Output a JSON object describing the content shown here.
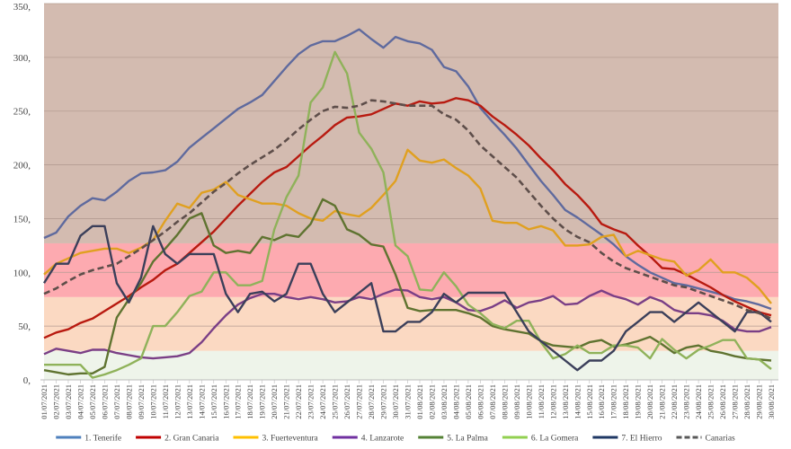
{
  "chart_data": {
    "type": "line",
    "title": "",
    "xlabel": "",
    "ylabel": "",
    "ylim": [
      0,
      350
    ],
    "yticks": [
      "0,",
      "50,",
      "100,",
      "150,",
      "200,",
      "250,",
      "300,",
      "350,"
    ],
    "grid": true,
    "legend_position": "bottom",
    "background_bands": [
      {
        "from": 0,
        "to": 27,
        "color": "#eef4ea"
      },
      {
        "from": 27,
        "to": 77,
        "color": "#fbd9c2"
      },
      {
        "from": 77,
        "to": 127,
        "color": "#fdaab0"
      },
      {
        "from": 127,
        "to": 350,
        "color": "#d3bbb0"
      }
    ],
    "x": [
      "01/07/2021",
      "02/07/2021",
      "03/07/2021",
      "04/07/2021",
      "05/07/2021",
      "06/07/2021",
      "07/07/2021",
      "08/07/2021",
      "09/07/2021",
      "10/07/2021",
      "11/07/2021",
      "12/07/2021",
      "13/07/2021",
      "14/07/2021",
      "15/07/2021",
      "16/07/2021",
      "17/07/2021",
      "18/07/2021",
      "19/07/2021",
      "20/07/2021",
      "21/07/2021",
      "22/07/2021",
      "23/07/2021",
      "24/07/2021",
      "25/07/2021",
      "26/07/2021",
      "27/07/2021",
      "28/07/2021",
      "29/07/2021",
      "30/07/2021",
      "31/07/2021",
      "01/08/2021",
      "02/08/2021",
      "03/08/2021",
      "04/08/2021",
      "05/08/2021",
      "06/08/2021",
      "07/08/2021",
      "08/08/2021",
      "09/08/2021",
      "10/08/2021",
      "11/08/2021",
      "12/08/2021",
      "13/08/2021",
      "14/08/2021",
      "15/08/2021",
      "16/08/2021",
      "17/08/2021",
      "18/08/2021",
      "19/08/2021",
      "20/08/2021",
      "21/08/2021",
      "22/08/2021",
      "23/08/2021",
      "24/08/2021",
      "25/08/2021",
      "26/08/2021",
      "27/08/2021",
      "28/08/2021",
      "29/08/2021",
      "30/08/2021"
    ],
    "series": [
      {
        "name": "1. Tenerife",
        "color": "#5f6a9e",
        "legend_color": "#4f81bd",
        "dashed": false,
        "values": [
          132,
          137,
          152,
          162,
          169,
          167,
          175,
          185,
          192,
          193,
          195,
          203,
          216,
          225,
          234,
          243,
          252,
          258,
          265,
          278,
          291,
          303,
          311,
          315,
          315,
          320,
          326,
          317,
          309,
          319,
          315,
          313,
          307,
          291,
          287,
          273,
          253,
          240,
          228,
          215,
          200,
          185,
          172,
          158,
          151,
          143,
          135,
          126,
          115,
          107,
          100,
          95,
          90,
          88,
          85,
          82,
          79,
          75,
          73,
          70,
          66
        ]
      },
      {
        "name": "2. Gran Canaria",
        "color": "#b81a10",
        "legend_color": "#c00000",
        "dashed": false,
        "values": [
          39,
          44,
          47,
          53,
          57,
          64,
          71,
          78,
          86,
          93,
          102,
          108,
          118,
          128,
          138,
          150,
          162,
          173,
          184,
          193,
          198,
          208,
          218,
          227,
          237,
          244,
          245,
          247,
          252,
          257,
          255,
          259,
          257,
          258,
          262,
          260,
          255,
          245,
          237,
          228,
          218,
          206,
          195,
          182,
          172,
          160,
          145,
          140,
          136,
          125,
          115,
          104,
          103,
          98,
          92,
          86,
          79,
          73,
          68,
          63,
          60
        ]
      },
      {
        "name": "3. Fuerteventura",
        "color": "#e0a020",
        "legend_color": "#ffc000",
        "dashed": false,
        "values": [
          98,
          108,
          113,
          118,
          120,
          122,
          122,
          118,
          123,
          130,
          148,
          164,
          160,
          174,
          177,
          184,
          172,
          168,
          164,
          164,
          162,
          155,
          150,
          148,
          157,
          154,
          152,
          160,
          172,
          185,
          214,
          204,
          202,
          205,
          197,
          190,
          178,
          148,
          146,
          146,
          140,
          143,
          139,
          125,
          125,
          126,
          133,
          135,
          115,
          120,
          116,
          112,
          110,
          97,
          102,
          112,
          100,
          100,
          95,
          85,
          71
        ]
      },
      {
        "name": "4. Lanzarote",
        "color": "#7a3f86",
        "legend_color": "#7030a0",
        "dashed": false,
        "values": [
          24,
          29,
          27,
          25,
          28,
          28,
          25,
          23,
          21,
          20,
          21,
          22,
          25,
          35,
          48,
          60,
          70,
          76,
          80,
          80,
          77,
          75,
          77,
          75,
          72,
          73,
          77,
          75,
          80,
          84,
          83,
          77,
          75,
          77,
          72,
          65,
          64,
          68,
          74,
          67,
          72,
          74,
          78,
          70,
          71,
          78,
          83,
          78,
          75,
          70,
          77,
          73,
          65,
          62,
          62,
          60,
          55,
          47,
          45,
          45,
          49
        ]
      },
      {
        "name": "5. La Palma",
        "color": "#5f7330",
        "legend_color": "#548235",
        "dashed": false,
        "values": [
          9,
          7,
          5,
          6,
          6,
          12,
          58,
          75,
          90,
          110,
          122,
          135,
          150,
          155,
          125,
          118,
          120,
          118,
          133,
          130,
          135,
          133,
          145,
          168,
          162,
          140,
          135,
          126,
          124,
          98,
          67,
          64,
          65,
          65,
          65,
          62,
          58,
          50,
          47,
          45,
          43,
          36,
          32,
          31,
          30,
          35,
          37,
          31,
          33,
          36,
          40,
          33,
          25,
          30,
          32,
          27,
          25,
          22,
          20,
          19,
          18
        ]
      },
      {
        "name": "6. La Gomera",
        "color": "#8fb25a",
        "legend_color": "#92d050",
        "dashed": false,
        "values": [
          14,
          14,
          14,
          14,
          2,
          5,
          9,
          14,
          20,
          50,
          50,
          63,
          78,
          82,
          100,
          100,
          88,
          88,
          92,
          140,
          170,
          190,
          258,
          272,
          305,
          285,
          230,
          215,
          193,
          125,
          115,
          84,
          83,
          100,
          87,
          70,
          62,
          52,
          48,
          55,
          55,
          35,
          20,
          24,
          32,
          25,
          25,
          32,
          32,
          30,
          20,
          38,
          28,
          20,
          28,
          32,
          37,
          37,
          20,
          19,
          10
        ]
      },
      {
        "name": "7. El Hierro",
        "color": "#3b3f5a",
        "legend_color": "#1f3864",
        "dashed": false,
        "values": [
          90,
          108,
          108,
          134,
          143,
          143,
          90,
          72,
          95,
          143,
          117,
          108,
          117,
          117,
          117,
          80,
          63,
          80,
          82,
          73,
          80,
          108,
          108,
          80,
          63,
          72,
          81,
          90,
          45,
          45,
          54,
          54,
          63,
          80,
          72,
          81,
          81,
          81,
          81,
          63,
          45,
          36,
          27,
          18,
          9,
          18,
          18,
          27,
          45,
          54,
          63,
          63,
          54,
          63,
          72,
          63,
          54,
          45,
          63,
          63,
          54
        ]
      },
      {
        "name": "Canarias",
        "color": "#5e4e4a",
        "legend_color": "#595959",
        "dashed": true,
        "values": [
          80,
          85,
          92,
          98,
          102,
          105,
          108,
          115,
          122,
          130,
          138,
          147,
          155,
          165,
          175,
          183,
          192,
          200,
          207,
          214,
          223,
          233,
          242,
          250,
          254,
          253,
          255,
          260,
          259,
          257,
          255,
          255,
          255,
          247,
          242,
          232,
          218,
          208,
          198,
          188,
          175,
          162,
          150,
          140,
          133,
          128,
          118,
          110,
          104,
          100,
          96,
          92,
          88,
          86,
          82,
          78,
          74,
          70,
          65,
          62,
          57
        ]
      }
    ]
  }
}
